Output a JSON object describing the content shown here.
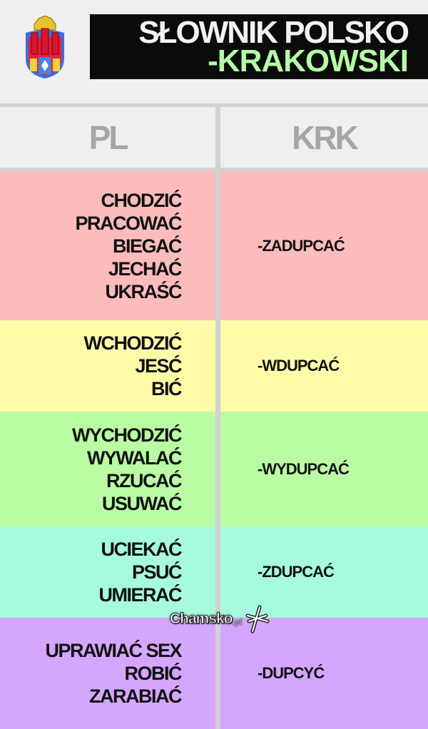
{
  "title": {
    "line1": "SŁOWNIK POLSKO",
    "line2": "-KRAKOWSKI"
  },
  "header": {
    "left": "PL",
    "right": "KRK"
  },
  "rows": [
    {
      "color": "#fdbcbc",
      "pl": [
        "CHODZIĆ",
        "PRACOWAĆ",
        "BIEGAĆ",
        "JECHAĆ",
        "UKRAŚĆ"
      ],
      "krk": "-ZADUPCAĆ"
    },
    {
      "color": "#fefca8",
      "pl": [
        "WCHODZIĆ",
        "JESĆ",
        "BIĆ"
      ],
      "krk": "-WDUPCAĆ"
    },
    {
      "color": "#b9fca4",
      "pl": [
        "WYCHODZIĆ",
        "WYWALAĆ",
        "RZUCAĆ",
        "USUWAĆ"
      ],
      "krk": "-WYDUPCAĆ"
    },
    {
      "color": "#a6fbdc",
      "pl": [
        "UCIEKAĆ",
        "PSUĆ",
        "UMIERAĆ"
      ],
      "krk": "-ZDUPCAĆ"
    },
    {
      "color": "#d5a6fe",
      "pl": [
        "UPRAWIAĆ SEX",
        "ROBIĆ",
        "ZARABIAĆ"
      ],
      "krk": "-DUPCYĆ"
    }
  ],
  "watermark": {
    "brand": "Chamsko",
    "suffix": ".pl"
  }
}
